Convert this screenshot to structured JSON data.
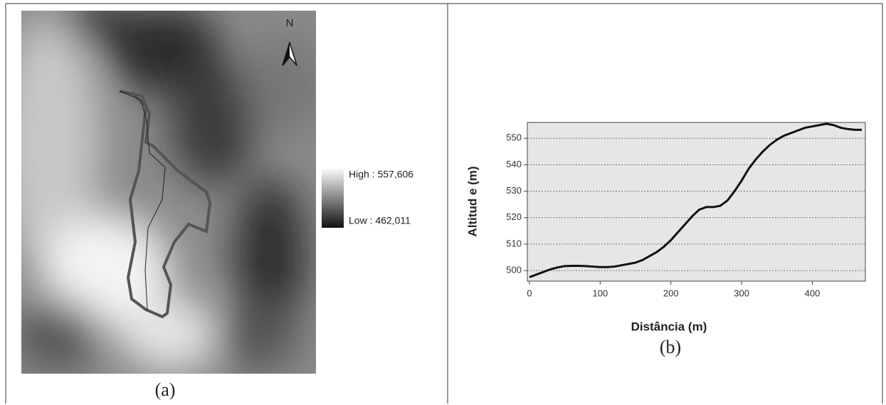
{
  "panel_a": {
    "north": "N",
    "legend_high": "High : 557,606",
    "legend_low": "Low : 462,011",
    "caption": "(a)"
  },
  "chart_data": {
    "type": "line",
    "caption": "(b)",
    "xlabel": "Distância (m)",
    "ylabel": "Altitud e (m)",
    "x": [
      0,
      10,
      20,
      30,
      40,
      50,
      60,
      70,
      80,
      90,
      100,
      110,
      120,
      130,
      140,
      150,
      160,
      170,
      180,
      190,
      200,
      210,
      220,
      230,
      240,
      250,
      260,
      270,
      280,
      290,
      300,
      310,
      320,
      330,
      340,
      350,
      360,
      370,
      380,
      390,
      400,
      410,
      420,
      430,
      440,
      450,
      460,
      470
    ],
    "values": [
      497.5,
      498.5,
      499.5,
      500.5,
      501.2,
      501.7,
      501.8,
      501.8,
      501.7,
      501.5,
      501.3,
      501.3,
      501.5,
      502,
      502.5,
      503,
      504,
      505.5,
      507,
      509,
      511.5,
      514.5,
      517.5,
      520.5,
      523,
      524,
      524,
      524.5,
      526.5,
      530,
      534,
      538.5,
      542,
      545,
      547.5,
      549.5,
      551,
      552,
      553,
      554,
      554.5,
      555,
      555.5,
      555,
      554,
      553.5,
      553.2,
      553.2
    ],
    "color": "#111111",
    "xlim": [
      -3,
      475
    ],
    "ylim": [
      496,
      556
    ],
    "xticks": [
      0,
      100,
      200,
      300,
      400
    ],
    "yticks": [
      500,
      510,
      520,
      530,
      540,
      550
    ],
    "grid": true
  }
}
